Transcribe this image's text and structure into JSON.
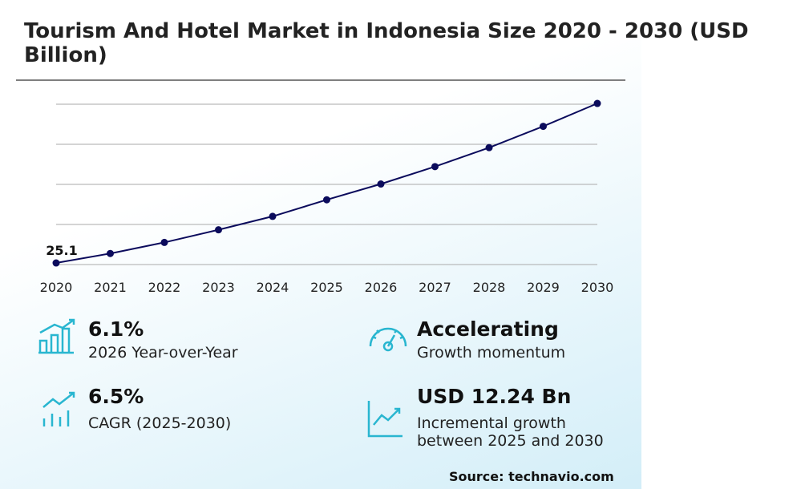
{
  "chart_data": {
    "type": "line",
    "title": "Tourism And Hotel Market in Indonesia Size 2020 - 2030 (USD Billion)",
    "x": [
      "2020",
      "2021",
      "2022",
      "2023",
      "2024",
      "2025",
      "2026",
      "2027",
      "2028",
      "2029",
      "2030"
    ],
    "values": [
      25.1,
      26.3,
      27.7,
      29.3,
      31.0,
      33.1,
      35.1,
      37.3,
      39.7,
      42.4,
      45.3
    ],
    "color": "#0b0b5c",
    "ylim": [
      24.9,
      45.2
    ],
    "grid": true
  },
  "highlights": [
    {
      "value": "6.1%",
      "label": "2026 Year-over-Year"
    },
    {
      "value": "Accelerating",
      "label": "Growth momentum"
    },
    {
      "value": "6.5%",
      "label": "CAGR (2025-2030)"
    },
    {
      "value": "USD 12.24 Bn",
      "label": "Incremental growth between 2025 and 2030"
    }
  ],
  "source": "Source: technavio.com"
}
